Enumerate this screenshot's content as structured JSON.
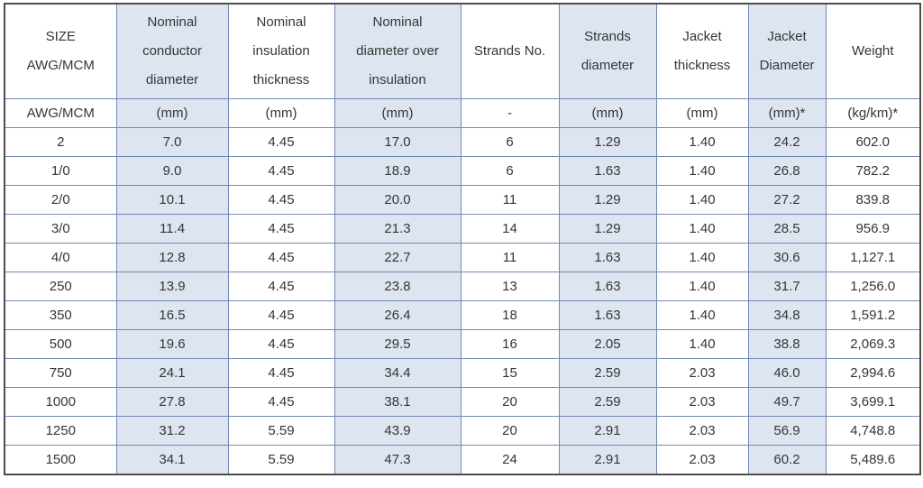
{
  "table": {
    "headers": [
      "SIZE\nAWG/MCM",
      "Nominal\nconductor\ndiameter",
      "Nominal\ninsulation\nthickness",
      "Nominal\ndiameter over\ninsulation",
      "Strands No.",
      "Strands\ndiameter",
      "Jacket\nthickness",
      "Jacket\nDiameter",
      "Weight"
    ],
    "units": [
      "AWG/MCM",
      "(mm)",
      "(mm)",
      "(mm)",
      "-",
      "(mm)",
      "(mm)",
      "(mm)*",
      "(kg/km)*"
    ],
    "rows": [
      [
        "2",
        "7.0",
        "4.45",
        "17.0",
        "6",
        "1.29",
        "1.40",
        "24.2",
        "602.0"
      ],
      [
        "1/0",
        "9.0",
        "4.45",
        "18.9",
        "6",
        "1.63",
        "1.40",
        "26.8",
        "782.2"
      ],
      [
        "2/0",
        "10.1",
        "4.45",
        "20.0",
        "11",
        "1.29",
        "1.40",
        "27.2",
        "839.8"
      ],
      [
        "3/0",
        "11.4",
        "4.45",
        "21.3",
        "14",
        "1.29",
        "1.40",
        "28.5",
        "956.9"
      ],
      [
        "4/0",
        "12.8",
        "4.45",
        "22.7",
        "11",
        "1.63",
        "1.40",
        "30.6",
        "1,127.1"
      ],
      [
        "250",
        "13.9",
        "4.45",
        "23.8",
        "13",
        "1.63",
        "1.40",
        "31.7",
        "1,256.0"
      ],
      [
        "350",
        "16.5",
        "4.45",
        "26.4",
        "18",
        "1.63",
        "1.40",
        "34.8",
        "1,591.2"
      ],
      [
        "500",
        "19.6",
        "4.45",
        "29.5",
        "16",
        "2.05",
        "1.40",
        "38.8",
        "2,069.3"
      ],
      [
        "750",
        "24.1",
        "4.45",
        "34.4",
        "15",
        "2.59",
        "2.03",
        "46.0",
        "2,994.6"
      ],
      [
        "1000",
        "27.8",
        "4.45",
        "38.1",
        "20",
        "2.59",
        "2.03",
        "49.7",
        "3,699.1"
      ],
      [
        "1250",
        "31.2",
        "5.59",
        "43.9",
        "20",
        "2.91",
        "2.03",
        "56.9",
        "4,748.8"
      ],
      [
        "1500",
        "34.1",
        "5.59",
        "47.3",
        "24",
        "2.91",
        "2.03",
        "60.2",
        "5,489.6"
      ]
    ]
  },
  "colors": {
    "shaded_column_fill": "#dde5f0",
    "grid_border": "#7388b3",
    "outer_border": "#4d4d4d",
    "text": "#363636"
  }
}
